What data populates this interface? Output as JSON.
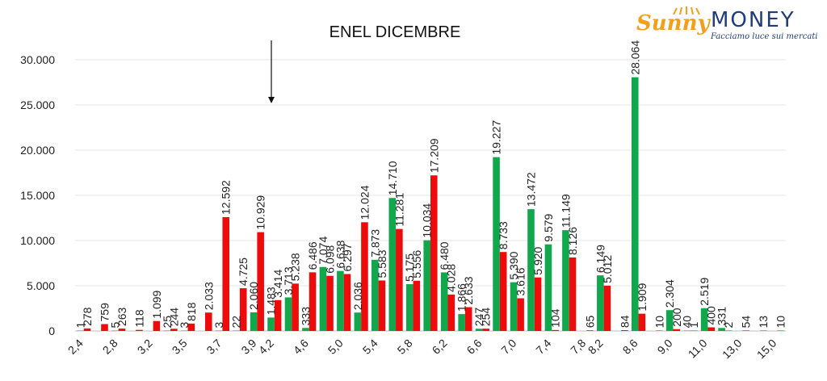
{
  "chart_data": {
    "type": "bar",
    "title": "ENEL DICEMBRE",
    "xlabel": "",
    "ylabel": "",
    "ylim": [
      0,
      32500
    ],
    "yticks": [
      "0",
      "5.000",
      "10.000",
      "15.000",
      "20.000",
      "25.000",
      "30.000"
    ],
    "grid": true,
    "legend": "none",
    "annotation": "arrow pointing down at strike 4,2",
    "x_tick_labels": [
      "2,4",
      "2,8",
      "3,2",
      "3,5",
      "3,7",
      "3,9",
      "4,2",
      "4,6",
      "5,0",
      "5,4",
      "5,8",
      "6,2",
      "6,6",
      "7,0",
      "7,4",
      "7,8",
      "8,2",
      "8,6",
      "9,0",
      "11,0",
      "13,0",
      "15,0"
    ],
    "series_colors": {
      "call": "#11a84d",
      "put": "#ee0b0b"
    },
    "categories": [
      {
        "call": "1",
        "put": "278"
      },
      {
        "call": "",
        "put": "759"
      },
      {
        "call": "5",
        "put": "263"
      },
      {
        "call": "",
        "put": "118"
      },
      {
        "call": "",
        "put": "1.099"
      },
      {
        "call": "25",
        "put": "244"
      },
      {
        "call": "3",
        "put": "818"
      },
      {
        "call": "",
        "put": "2.033"
      },
      {
        "call": "3",
        "put": "12.592"
      },
      {
        "call": "22",
        "put": "4.725"
      },
      {
        "call": "2.060",
        "put": "10.929"
      },
      {
        "call": "1.483",
        "put": "3.414"
      },
      {
        "call": "3.713",
        "put": "5.238"
      },
      {
        "call": "333",
        "put": "6.486"
      },
      {
        "call": "7.074",
        "put": "6.098"
      },
      {
        "call": "6.638",
        "put": "6.297"
      },
      {
        "call": "2.036",
        "put": "12.024"
      },
      {
        "call": "7.873",
        "put": "5.583"
      },
      {
        "call": "14.710",
        "put": "11.281"
      },
      {
        "call": "5.175",
        "put": "5.556"
      },
      {
        "call": "10.034",
        "put": "17.209"
      },
      {
        "call": "6.480",
        "put": "4.028"
      },
      {
        "call": "1.866",
        "put": "2.633"
      },
      {
        "call": "247",
        "put": "254"
      },
      {
        "call": "19.227",
        "put": "8.733"
      },
      {
        "call": "5.390",
        "put": "3.616"
      },
      {
        "call": "13.472",
        "put": "5.920"
      },
      {
        "call": "9.579",
        "put": "104"
      },
      {
        "call": "11.149",
        "put": "8.126"
      },
      {
        "call": "",
        "put": "65"
      },
      {
        "call": "6.149",
        "put": "5.012"
      },
      {
        "call": "",
        "put": "84"
      },
      {
        "call": "28.064",
        "put": "1.909"
      },
      {
        "call": "",
        "put": "10"
      },
      {
        "call": "2.304",
        "put": "200"
      },
      {
        "call": "40",
        "put": "1"
      },
      {
        "call": "2.519",
        "put": "400"
      },
      {
        "call": "331",
        "put": "2"
      },
      {
        "call": "",
        "put": "54"
      },
      {
        "call": "",
        "put": "13"
      },
      {
        "call": "",
        "put": "10"
      }
    ]
  },
  "logo": {
    "brand_left": "Sunny",
    "brand_right": "MONEY",
    "tagline": "Facciamo luce sui mercati"
  }
}
